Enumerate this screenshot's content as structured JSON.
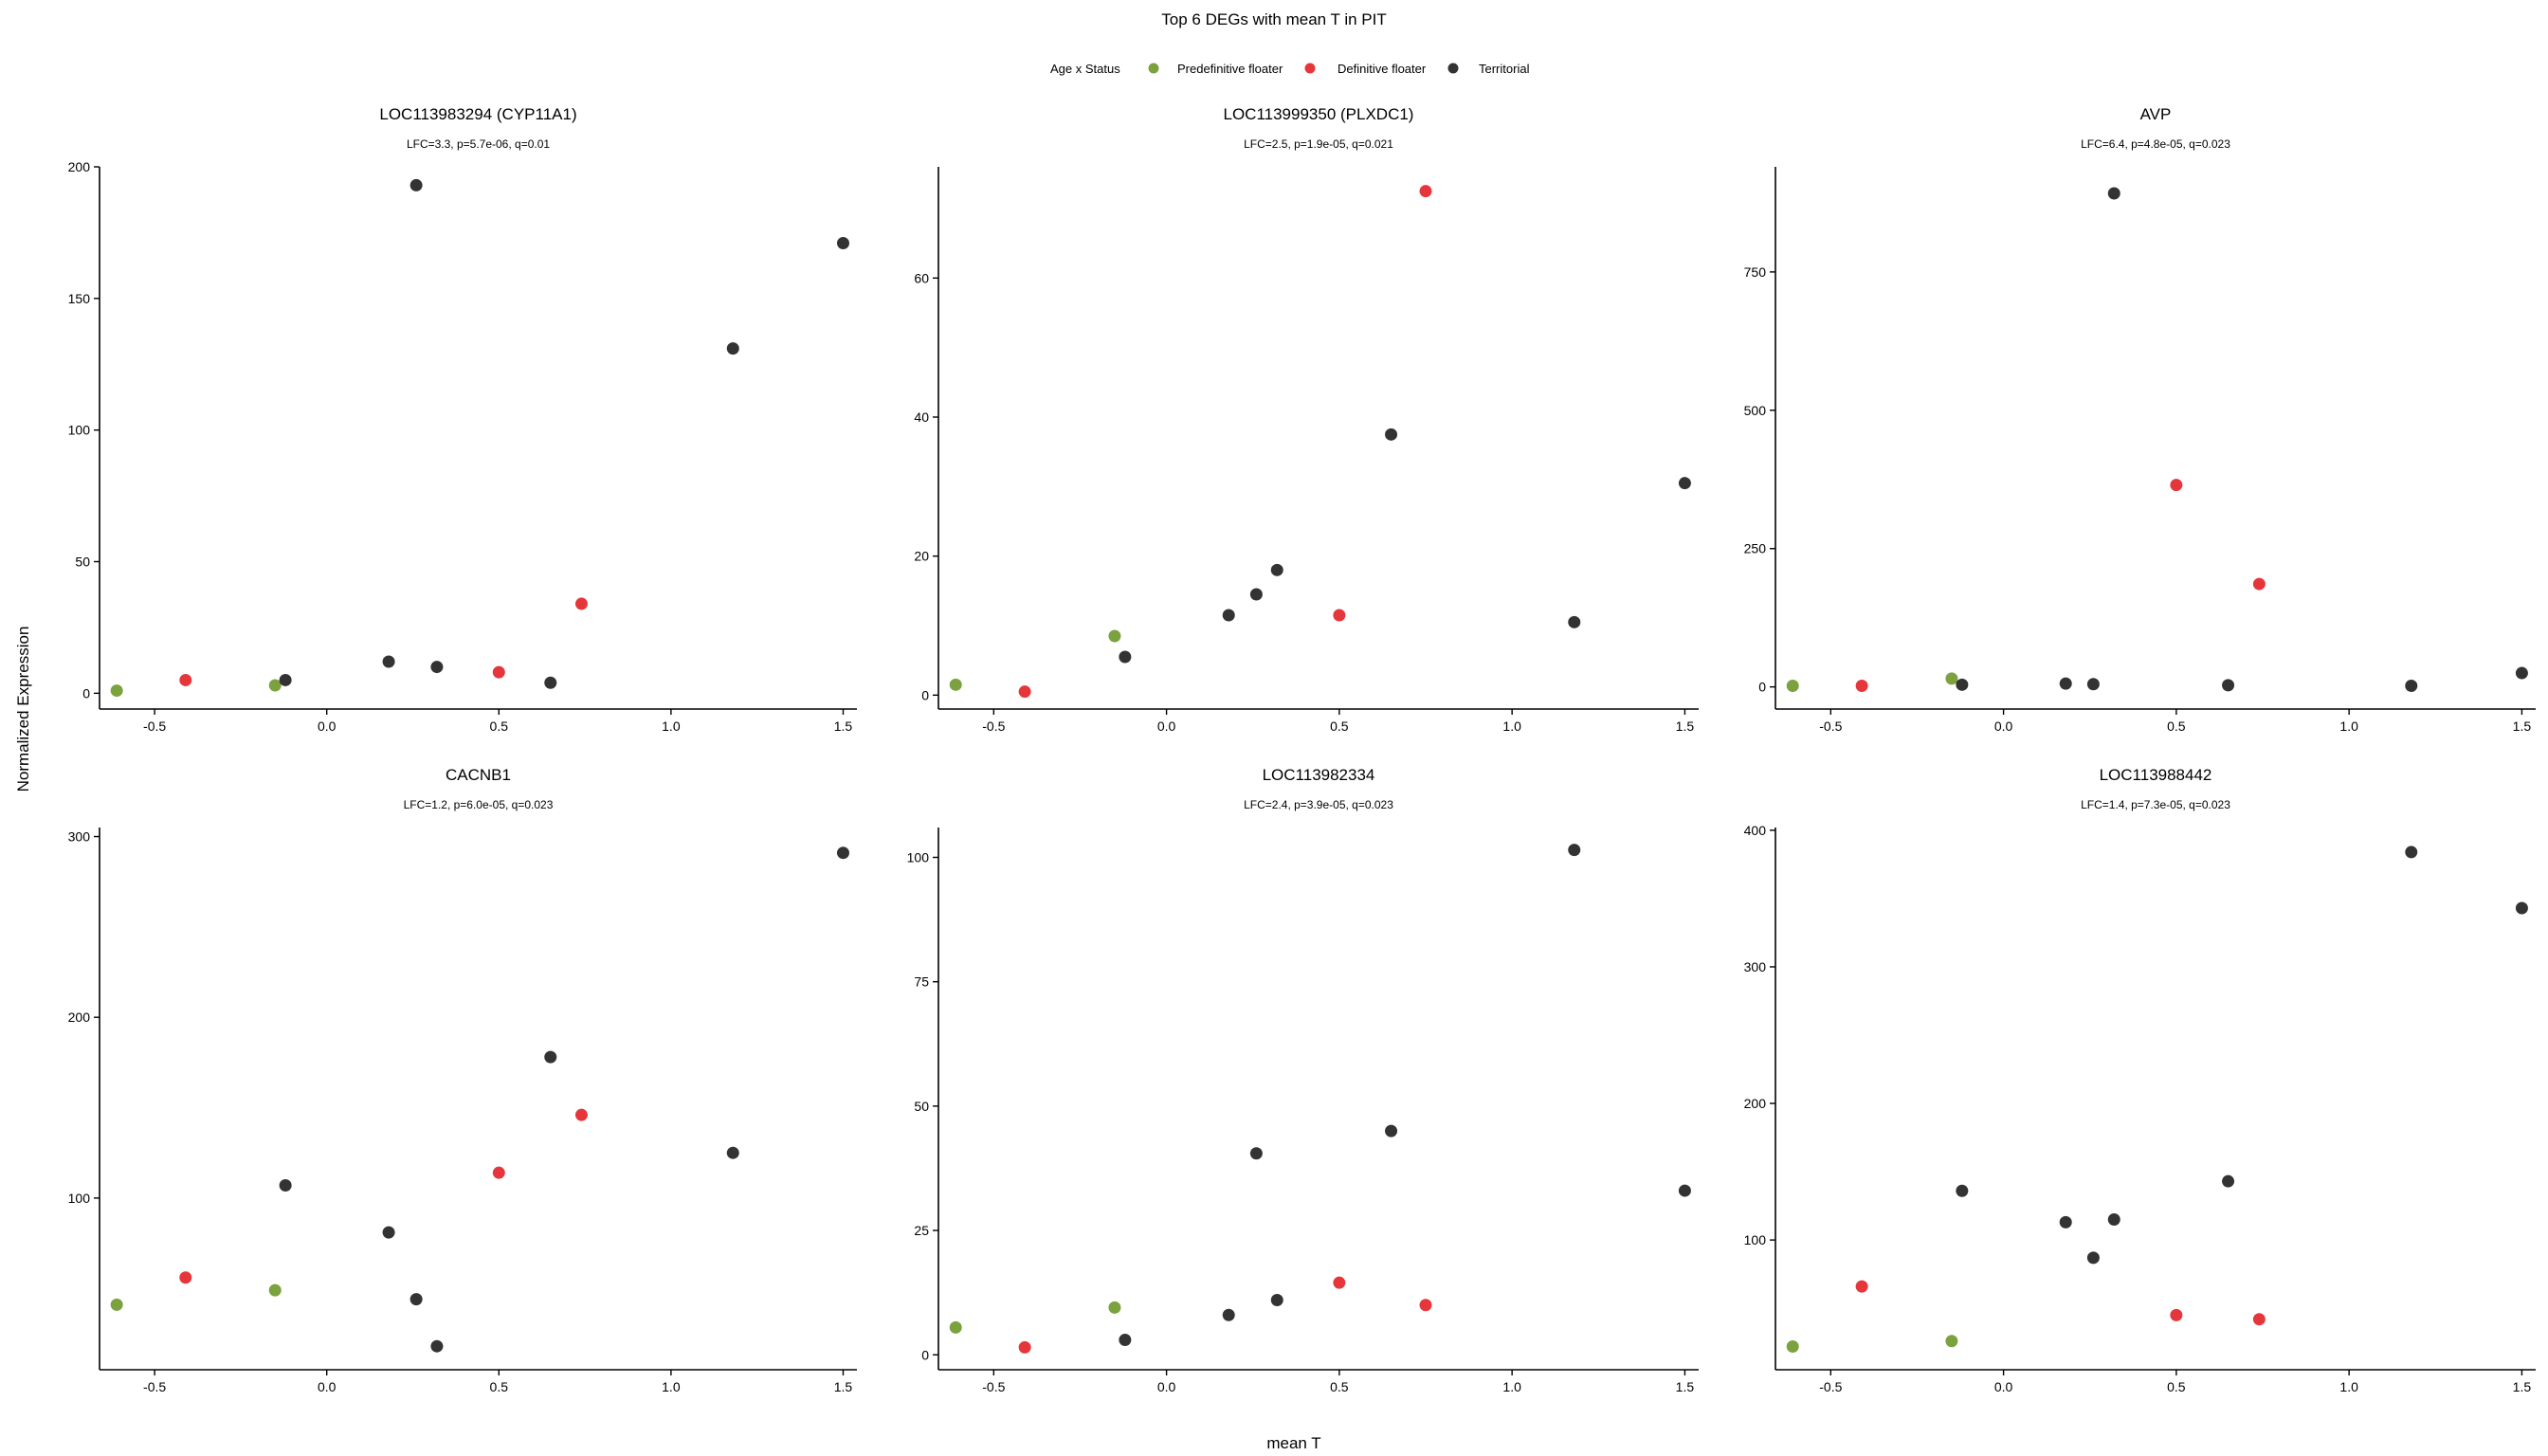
{
  "figure": {
    "title": "Top 6 DEGs with mean T in PIT",
    "xlabel": "mean T",
    "ylabel": "Normalized Expression",
    "legend": {
      "title": "Age x Status",
      "placement": "top-center",
      "entries": [
        {
          "name": "Predefinitive floater",
          "color": "#7BA23F"
        },
        {
          "name": "Definitive floater",
          "color": "#E5373B"
        },
        {
          "name": "Territorial",
          "color": "#333333"
        }
      ]
    }
  },
  "chart_data": [
    {
      "type": "scatter",
      "title": "LOC113983294 (CYP11A1)",
      "subtitle": "LFC=3.3, p=5.7e-06, q=0.01",
      "xlim": [
        -0.66,
        1.54
      ],
      "ylim": [
        -6,
        200
      ],
      "xticks": [
        -0.5,
        0.0,
        0.5,
        1.0,
        1.5
      ],
      "xtick_labels": [
        "-0.5",
        "0.0",
        "0.5",
        "1.0",
        "1.5"
      ],
      "yticks": [
        0,
        50,
        100,
        150,
        200
      ],
      "ytick_labels": [
        "0",
        "50",
        "100",
        "150",
        "200"
      ],
      "series": [
        {
          "name": "Predefinitive floater",
          "color": "#7BA23F",
          "points": [
            [
              -0.61,
              1
            ],
            [
              -0.15,
              3
            ]
          ]
        },
        {
          "name": "Definitive floater",
          "color": "#E5373B",
          "points": [
            [
              -0.41,
              5
            ],
            [
              0.5,
              8
            ],
            [
              0.74,
              34
            ]
          ]
        },
        {
          "name": "Territorial",
          "color": "#333333",
          "points": [
            [
              -0.12,
              5
            ],
            [
              0.18,
              12
            ],
            [
              0.26,
              193
            ],
            [
              0.32,
              10
            ],
            [
              0.65,
              4
            ],
            [
              1.18,
              131
            ],
            [
              1.5,
              171
            ]
          ]
        }
      ]
    },
    {
      "type": "scatter",
      "title": "LOC113999350 (PLXDC1)",
      "subtitle": "LFC=2.5, p=1.9e-05, q=0.021",
      "xlim": [
        -0.66,
        1.54
      ],
      "ylim": [
        -2,
        76
      ],
      "xticks": [
        -0.5,
        0.0,
        0.5,
        1.0,
        1.5
      ],
      "xtick_labels": [
        "-0.5",
        "0.0",
        "0.5",
        "1.0",
        "1.5"
      ],
      "yticks": [
        0,
        20,
        40,
        60
      ],
      "ytick_labels": [
        "0",
        "20",
        "40",
        "60"
      ],
      "series": [
        {
          "name": "Predefinitive floater",
          "color": "#7BA23F",
          "points": [
            [
              -0.61,
              1.5
            ],
            [
              -0.15,
              8.5
            ]
          ]
        },
        {
          "name": "Definitive floater",
          "color": "#E5373B",
          "points": [
            [
              -0.41,
              0.5
            ],
            [
              0.5,
              11.5
            ],
            [
              0.75,
              72.5
            ]
          ]
        },
        {
          "name": "Territorial",
          "color": "#333333",
          "points": [
            [
              -0.12,
              5.5
            ],
            [
              0.18,
              11.5
            ],
            [
              0.26,
              14.5
            ],
            [
              0.32,
              18
            ],
            [
              0.65,
              37.5
            ],
            [
              1.18,
              10.5
            ],
            [
              1.5,
              30.5
            ]
          ]
        }
      ]
    },
    {
      "type": "scatter",
      "title": "AVP",
      "subtitle": "LFC=6.4, p=4.8e-05, q=0.023",
      "xlim": [
        -0.66,
        1.54
      ],
      "ylim": [
        -40,
        940
      ],
      "xticks": [
        -0.5,
        0.0,
        0.5,
        1.0,
        1.5
      ],
      "xtick_labels": [
        "-0.5",
        "0.0",
        "0.5",
        "1.0",
        "1.5"
      ],
      "yticks": [
        0,
        250,
        500,
        750
      ],
      "ytick_labels": [
        "0",
        "250",
        "500",
        "750"
      ],
      "series": [
        {
          "name": "Predefinitive floater",
          "color": "#7BA23F",
          "points": [
            [
              -0.61,
              2
            ],
            [
              -0.15,
              15
            ]
          ]
        },
        {
          "name": "Definitive floater",
          "color": "#E5373B",
          "points": [
            [
              -0.41,
              2
            ],
            [
              0.5,
              365
            ],
            [
              0.74,
              186
            ]
          ]
        },
        {
          "name": "Territorial",
          "color": "#333333",
          "points": [
            [
              -0.12,
              4
            ],
            [
              0.18,
              6
            ],
            [
              0.26,
              5
            ],
            [
              0.32,
              892
            ],
            [
              0.65,
              3
            ],
            [
              1.18,
              2
            ],
            [
              1.5,
              25
            ]
          ]
        }
      ]
    },
    {
      "type": "scatter",
      "title": "CACNB1",
      "subtitle": "LFC=1.2, p=6.0e-05, q=0.023",
      "xlim": [
        -0.66,
        1.54
      ],
      "ylim": [
        5,
        305
      ],
      "xticks": [
        -0.5,
        0.0,
        0.5,
        1.0,
        1.5
      ],
      "xtick_labels": [
        "-0.5",
        "0.0",
        "0.5",
        "1.0",
        "1.5"
      ],
      "yticks": [
        100,
        200,
        300
      ],
      "ytick_labels": [
        "100",
        "200",
        "300"
      ],
      "series": [
        {
          "name": "Predefinitive floater",
          "color": "#7BA23F",
          "points": [
            [
              -0.61,
              41
            ],
            [
              -0.15,
              49
            ]
          ]
        },
        {
          "name": "Definitive floater",
          "color": "#E5373B",
          "points": [
            [
              -0.41,
              56
            ],
            [
              0.5,
              114
            ],
            [
              0.74,
              146
            ]
          ]
        },
        {
          "name": "Territorial",
          "color": "#333333",
          "points": [
            [
              -0.12,
              107
            ],
            [
              0.18,
              81
            ],
            [
              0.26,
              44
            ],
            [
              0.32,
              18
            ],
            [
              0.65,
              178
            ],
            [
              1.18,
              125
            ],
            [
              1.5,
              291
            ]
          ]
        }
      ]
    },
    {
      "type": "scatter",
      "title": "LOC113982334",
      "subtitle": "LFC=2.4, p=3.9e-05, q=0.023",
      "xlim": [
        -0.66,
        1.54
      ],
      "ylim": [
        -3,
        106
      ],
      "xticks": [
        -0.5,
        0.0,
        0.5,
        1.0,
        1.5
      ],
      "xtick_labels": [
        "-0.5",
        "0.0",
        "0.5",
        "1.0",
        "1.5"
      ],
      "yticks": [
        0,
        25,
        50,
        75,
        100
      ],
      "ytick_labels": [
        "0",
        "25",
        "50",
        "75",
        "100"
      ],
      "series": [
        {
          "name": "Predefinitive floater",
          "color": "#7BA23F",
          "points": [
            [
              -0.61,
              5.5
            ],
            [
              -0.15,
              9.5
            ]
          ]
        },
        {
          "name": "Definitive floater",
          "color": "#E5373B",
          "points": [
            [
              -0.41,
              1.5
            ],
            [
              0.5,
              14.5
            ],
            [
              0.75,
              10
            ]
          ]
        },
        {
          "name": "Territorial",
          "color": "#333333",
          "points": [
            [
              -0.12,
              3
            ],
            [
              0.18,
              8
            ],
            [
              0.26,
              40.5
            ],
            [
              0.32,
              11
            ],
            [
              0.65,
              45
            ],
            [
              1.18,
              101.5
            ],
            [
              1.5,
              33
            ]
          ]
        }
      ]
    },
    {
      "type": "scatter",
      "title": "LOC113988442",
      "subtitle": "LFC=1.4, p=7.3e-05, q=0.023",
      "xlim": [
        -0.66,
        1.54
      ],
      "ylim": [
        5,
        402
      ],
      "xticks": [
        -0.5,
        0.0,
        0.5,
        1.0,
        1.5
      ],
      "xtick_labels": [
        "-0.5",
        "0.0",
        "0.5",
        "1.0",
        "1.5"
      ],
      "yticks": [
        100,
        200,
        300,
        400
      ],
      "ytick_labels": [
        "100",
        "200",
        "300",
        "400"
      ],
      "series": [
        {
          "name": "Predefinitive floater",
          "color": "#7BA23F",
          "points": [
            [
              -0.61,
              22
            ],
            [
              -0.15,
              26
            ]
          ]
        },
        {
          "name": "Definitive floater",
          "color": "#E5373B",
          "points": [
            [
              -0.41,
              66
            ],
            [
              0.5,
              45
            ],
            [
              0.74,
              42
            ]
          ]
        },
        {
          "name": "Territorial",
          "color": "#333333",
          "points": [
            [
              -0.12,
              136
            ],
            [
              0.18,
              113
            ],
            [
              0.26,
              87
            ],
            [
              0.32,
              115
            ],
            [
              0.65,
              143
            ],
            [
              1.18,
              384
            ],
            [
              1.5,
              343
            ]
          ]
        }
      ]
    }
  ]
}
